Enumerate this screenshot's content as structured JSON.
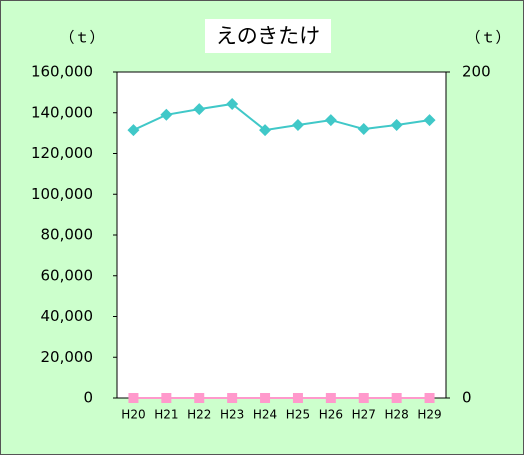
{
  "chart_data": {
    "type": "line",
    "title": "えのきたけ",
    "y_label": "（ｔ）",
    "y2_label": "（ｔ）",
    "categories": [
      "H20",
      "H21",
      "H22",
      "H23",
      "H24",
      "H25",
      "H26",
      "H27",
      "H28",
      "H29"
    ],
    "series": [
      {
        "color": "#40c8c8",
        "marker": "diamond",
        "values": [
          131500,
          139000,
          141800,
          144300,
          131500,
          134000,
          136400,
          132000,
          134000,
          136400
        ]
      },
      {
        "color": "#ff99cc",
        "marker": "square",
        "axis": "y2",
        "values": [
          0,
          0,
          0,
          0,
          0,
          0,
          0,
          0,
          0,
          0
        ]
      }
    ],
    "ylim": [
      0,
      160000
    ],
    "yticks": [
      0,
      {
        "value": 20000,
        "label": "20,000"
      },
      {
        "value": 40000,
        "label": "40,000"
      },
      {
        "value": 60000,
        "label": "60,000"
      },
      {
        "value": 80000,
        "label": "80,000"
      },
      {
        "value": 100000,
        "label": "100,000"
      },
      {
        "value": 120000,
        "label": "120,000"
      },
      {
        "value": 140000,
        "label": "140,000"
      },
      {
        "value": 160000,
        "label": "160,000"
      }
    ],
    "y2lim": [
      0,
      200
    ],
    "y2ticks": [
      0,
      200
    ],
    "grid": false
  }
}
